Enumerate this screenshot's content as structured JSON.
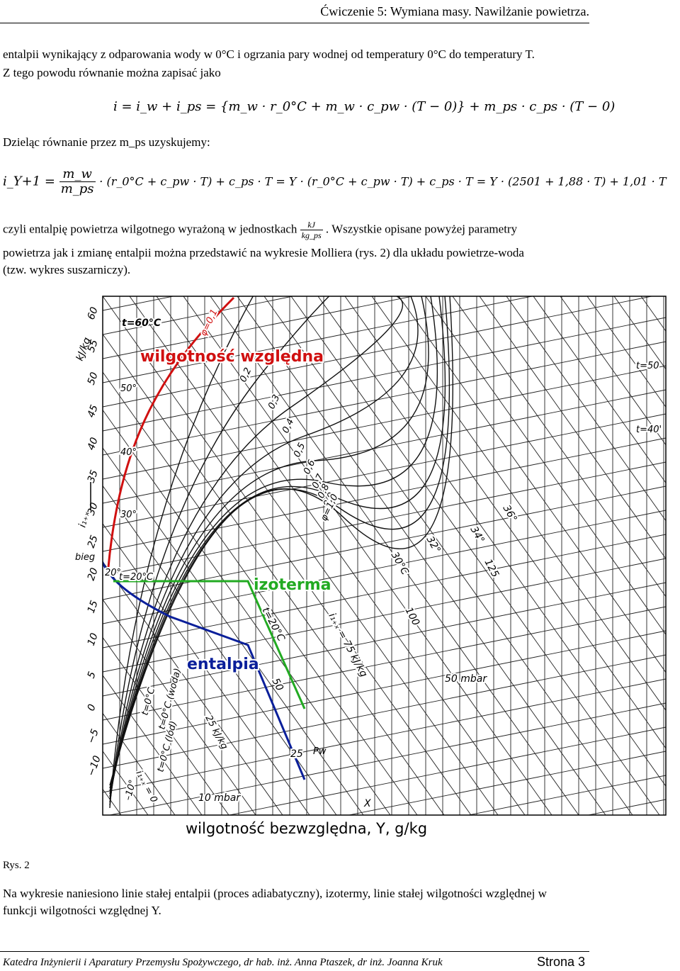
{
  "header": {
    "title": "Ćwiczenie 5: Wymiana masy. Nawilżanie powietrza."
  },
  "intro": {
    "line1": "entalpii wynikający z odparowania wody w 0°C i ogrzania pary wodnej od temperatury 0°C do temperatury T.",
    "line2": "Z tego powodu równanie można zapisać jako"
  },
  "equations": {
    "eq1": "i = i_w + i_ps = {m_w · r_0°C + m_w · c_pw · (T − 0)} + m_ps · c_ps · (T − 0)",
    "dividing": "Dzieląc równanie przez m_ps uzyskujemy:",
    "eq2_lhs": "i_Y+1 =",
    "eq2_num": "m_w",
    "eq2_den": "m_ps",
    "eq2_rhs": "· (r_0°C + c_pw · T) + c_ps · T = Y · (r_0°C + c_pw · T) + c_ps · T = Y · (2501 + 1,88 · T) + 1,01 · T"
  },
  "body_text": {
    "line1_a": "czyli entalpię powietrza wilgotnego wyrażoną w jednostkach",
    "unit_num": "kJ",
    "unit_den": "kg_ps",
    "line1_b": ". Wszystkie opisane powyżej parametry",
    "line2": "powietrza jak i zmianę entalpii można przedstawić na wykresie Molliera (rys. 2) dla układu powietrze-woda",
    "line3": "(tzw. wykres suszarniczy)."
  },
  "figure": {
    "caption": "Rys. 2",
    "labels": {
      "rh": "wilgotność względna",
      "isotherm": "izoterma",
      "enthalpy": "entalpia",
      "xaxis": "wilgotność bezwzględna, Y, g/kg",
      "yaxis": "i₁₊ₓ",
      "kjkg": "kJ/kg",
      "bieg": "bieg",
      "pw": "Pw",
      "x": "X",
      "mbar50": "50 mbar",
      "mbar10": "10 mbar",
      "t60": "t=60°C",
      "t50": "t=50",
      "t40": "t=40'",
      "t20": "t=20°C",
      "t20iso": "t=20°C",
      "t0": "t=0°C",
      "t0woda": "t=0°C (woda)",
      "t0lod": "t=0°C (lód)",
      "i75": "i₁₊ₓ = 75 kJ/kg",
      "i25": "25 kJ/kg",
      "i0": "i₁₊ₓ = 0",
      "deg30C": "30°C",
      "deg32": "32°",
      "deg34": "34°",
      "deg36": "36°",
      "deg50": "50°",
      "deg40": "40°",
      "deg30": "30°",
      "deg20": "20°",
      "deg10": "–10°",
      "v125": "125",
      "v100": "100",
      "v50": "50",
      "v25": "25",
      "phi02": "0,2",
      "phi03": "0,3",
      "phi04": "0,4",
      "phi05": "0,5",
      "phi06": "0,6",
      "phi07": "0,7",
      "phi08": "0,8",
      "phi09": "0,9",
      "phi10": "φ=1,0",
      "phi01": "φ=0,1"
    },
    "y_ticks": [
      "60",
      "55",
      "50",
      "45",
      "40",
      "35",
      "30",
      "25",
      "20",
      "15",
      "10",
      "5",
      "0",
      "−5",
      "−10"
    ]
  },
  "conclusion": {
    "line1": "Na wykresie naniesiono linie stałej entalpii (proces adiabatyczny), izotermy, linie stałej wilgotności względnej w",
    "line2": "funkcji wilgotności względnej Y."
  },
  "footer": {
    "text": "Katedra Inżynierii i Aparatury Przemysłu Spożywczego, dr hab. inż. Anna Ptaszek, dr inż. Joanna Kruk",
    "page": "Strona 3"
  },
  "colors": {
    "rh_line": "#d01010",
    "isotherm": "#22aa22",
    "enthalpy": "#0a1f9a"
  }
}
